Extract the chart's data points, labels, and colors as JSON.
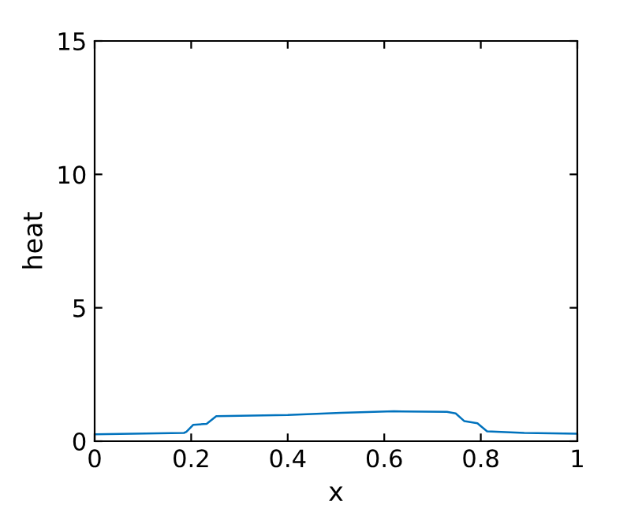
{
  "chart_data": {
    "type": "line",
    "xlabel": "x",
    "ylabel": "heat",
    "x": [
      0,
      0.185,
      0.19,
      0.204,
      0.232,
      0.252,
      0.4,
      0.51,
      0.62,
      0.73,
      0.748,
      0.766,
      0.793,
      0.813,
      0.89,
      1
    ],
    "series": [
      {
        "color": "#0072bd",
        "values": [
          0.26,
          0.31,
          0.35,
          0.61,
          0.65,
          0.94,
          0.98,
          1.06,
          1.12,
          1.1,
          1.04,
          0.75,
          0.67,
          0.37,
          0.31,
          0.28
        ]
      }
    ],
    "xlim": [
      0,
      1
    ],
    "ylim": [
      0,
      15
    ],
    "xticks": [
      0,
      0.2,
      0.4,
      0.6,
      0.8,
      1
    ],
    "yticks": [
      0,
      5,
      10,
      15
    ],
    "grid": false,
    "legend": false
  }
}
